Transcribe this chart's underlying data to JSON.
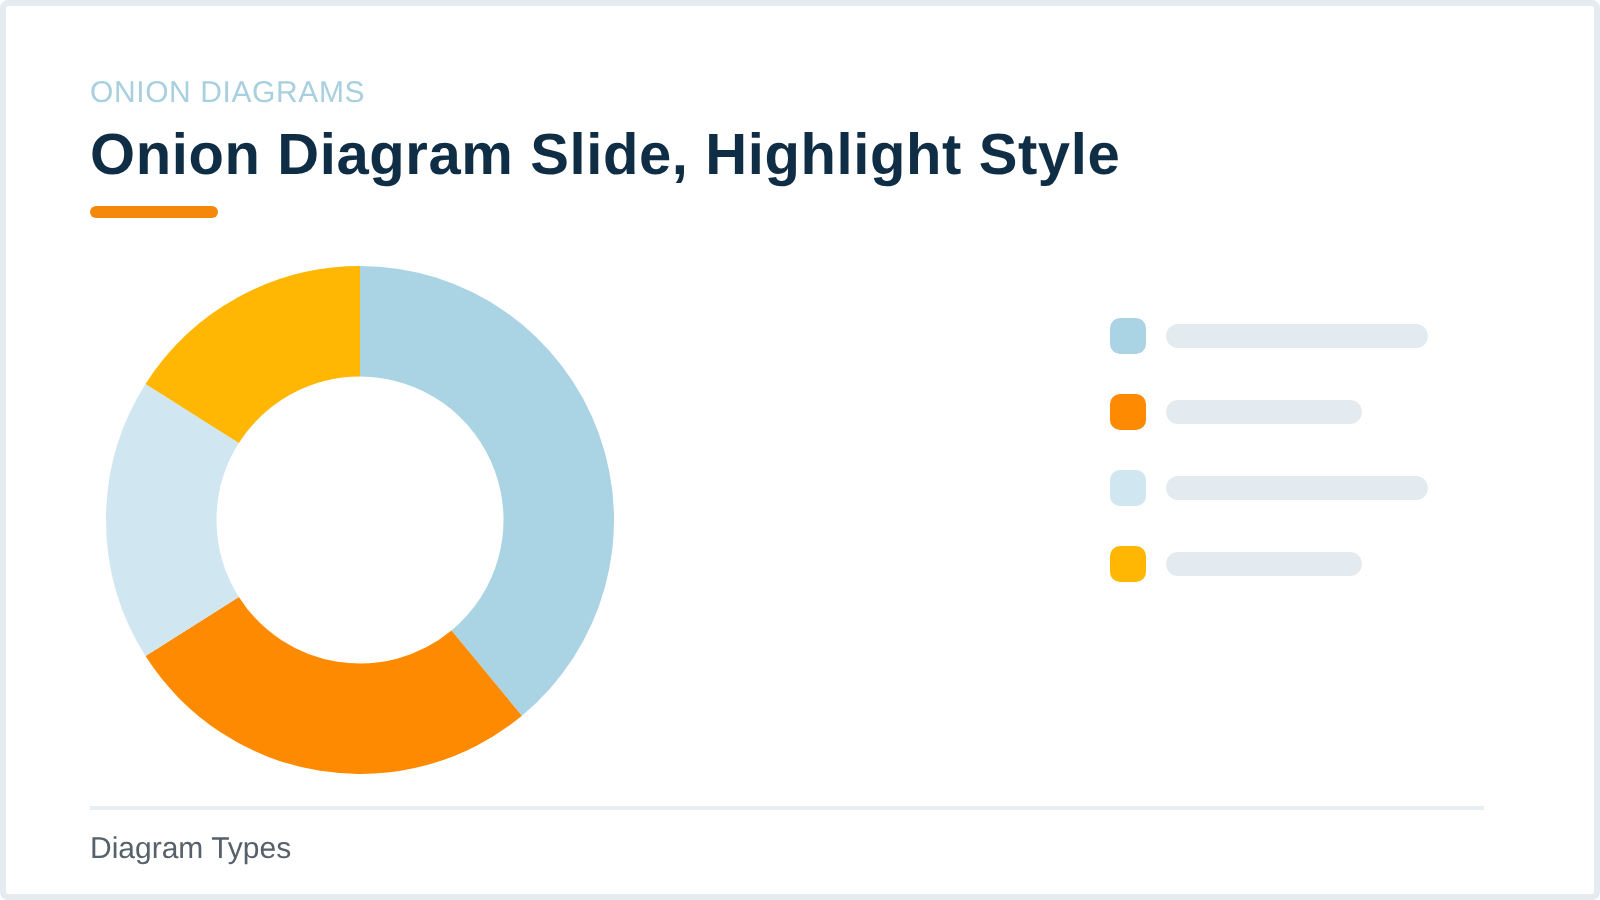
{
  "chart_data": {
    "type": "donut",
    "subtitle": "ONION DIAGRAMS",
    "title": "Onion Diagram Slide, Highlight Style",
    "categories": [
      null,
      null,
      null,
      null
    ],
    "values": [
      39,
      27,
      18,
      16
    ],
    "colors": [
      "#aad3e4",
      "#fd8a00",
      "#d0e6f0",
      "#ffb703"
    ],
    "annotations": [
      "Diagram Types"
    ]
  }
}
